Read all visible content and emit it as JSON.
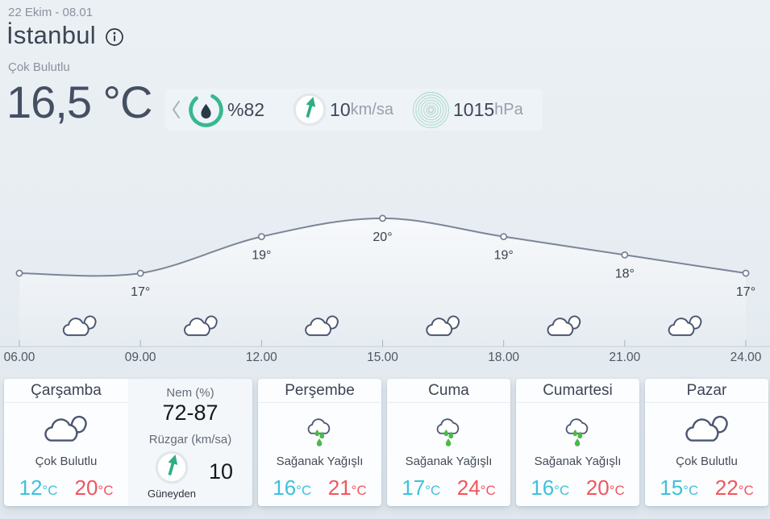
{
  "colors": {
    "accent_teal": "#35b890",
    "rain_green": "#4cb84c",
    "low_cyan": "#3ec1dc",
    "high_red": "#f2555d"
  },
  "header": {
    "date": "22 Ekim - 08.01",
    "city": "İstanbul",
    "condition": "Çok Bulutlu",
    "temperature": "16,5 °C"
  },
  "stats": {
    "humidity": "%82",
    "wind_value": "10",
    "wind_unit": "km/sa",
    "pressure_value": "1015",
    "pressure_unit": "hPa"
  },
  "chart_data": {
    "type": "line",
    "x": [
      "06.00",
      "09.00",
      "12.00",
      "15.00",
      "18.00",
      "21.00",
      "24.00"
    ],
    "values": [
      17,
      17,
      19,
      20,
      19,
      18,
      17
    ],
    "point_labels": [
      "",
      "17°",
      "19°",
      "20°",
      "19°",
      "18°",
      "17°"
    ],
    "ylim": [
      16.5,
      21
    ],
    "grid": false,
    "cloud_icon_count": 6
  },
  "details": {
    "humidity_label": "Nem (%)",
    "humidity_range": "72-87",
    "wind_label": "Rüzgar (km/sa)",
    "wind_direction": "Güneyden",
    "wind_speed": "10"
  },
  "units": {
    "deg": "°C"
  },
  "forecast": [
    {
      "day": "Çarşamba",
      "condition": "Çok Bulutlu",
      "icon": "cloudy",
      "low": "12",
      "high": "20"
    },
    {
      "day": "Perşembe",
      "condition": "Sağanak Yağışlı",
      "icon": "rain",
      "low": "16",
      "high": "21"
    },
    {
      "day": "Cuma",
      "condition": "Sağanak Yağışlı",
      "icon": "rain",
      "low": "17",
      "high": "24"
    },
    {
      "day": "Cumartesi",
      "condition": "Sağanak Yağışlı",
      "icon": "rain",
      "low": "16",
      "high": "20"
    },
    {
      "day": "Pazar",
      "condition": "Çok Bulutlu",
      "icon": "cloudy",
      "low": "15",
      "high": "22"
    }
  ]
}
